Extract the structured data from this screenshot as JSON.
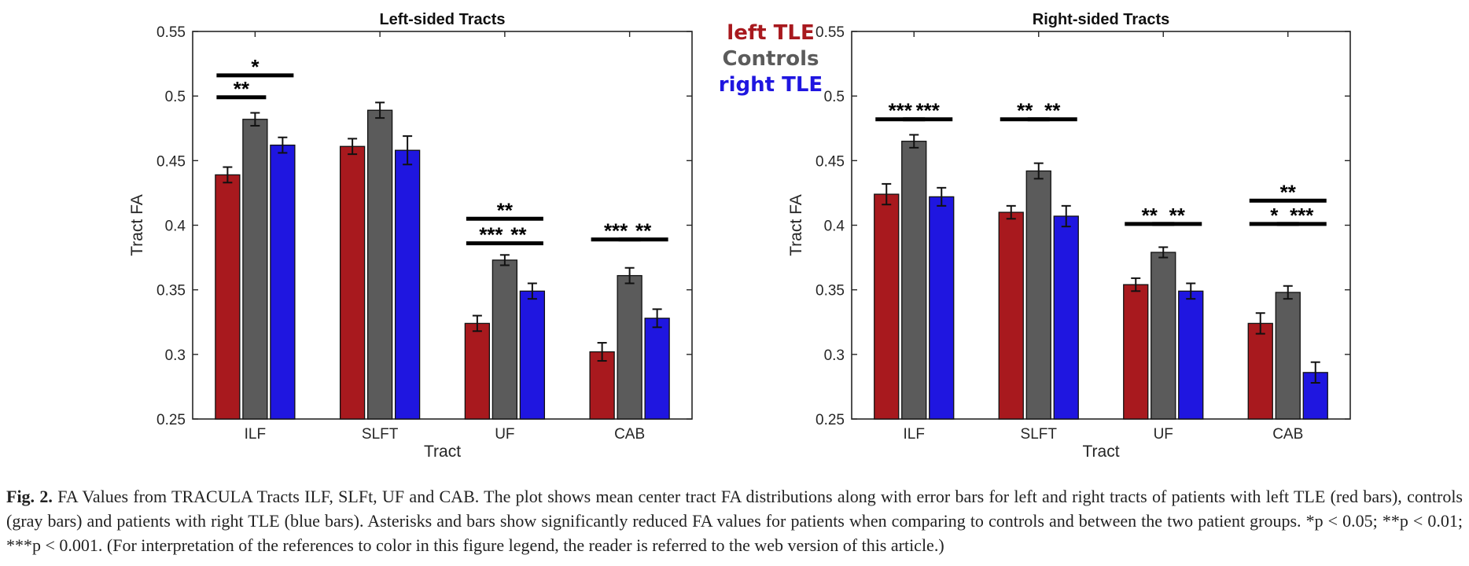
{
  "legend": {
    "entries": [
      {
        "label": "left TLE",
        "color": "#A8191E"
      },
      {
        "label": "Controls",
        "color": "#5B5B5B"
      },
      {
        "label": "right TLE",
        "color": "#1F16E0"
      }
    ]
  },
  "caption": {
    "label": "Fig. 2.",
    "text": "FA Values from TRACULA Tracts ILF, SLFt, UF and CAB. The plot shows mean center tract FA distributions along with error bars for left and right tracts of patients with left TLE (red bars), controls (gray bars) and patients with right TLE (blue bars). Asterisks and bars show significantly reduced FA values for patients when comparing to controls and between the two patient groups. *p < 0.05; **p < 0.01; ***p < 0.001. (For interpretation of the references to color in this figure legend, the reader is referred to the web version of this article.)"
  },
  "chart_data": [
    {
      "type": "bar",
      "title": "Left-sided Tracts",
      "xlabel": "Tract",
      "ylabel": "Tract FA",
      "ylim": [
        0.25,
        0.55
      ],
      "yticks": [
        "0.25",
        "0.3",
        "0.35",
        "0.4",
        "0.45",
        "0.5",
        "0.55"
      ],
      "categories": [
        "ILF",
        "SLFT",
        "UF",
        "CAB"
      ],
      "series": [
        {
          "name": "left TLE",
          "color": "#A8191E",
          "values": [
            0.439,
            0.461,
            0.324,
            0.302
          ],
          "errors": [
            0.006,
            0.006,
            0.006,
            0.007
          ]
        },
        {
          "name": "Controls",
          "color": "#5B5B5B",
          "values": [
            0.482,
            0.489,
            0.373,
            0.361
          ],
          "errors": [
            0.005,
            0.006,
            0.004,
            0.006
          ]
        },
        {
          "name": "right TLE",
          "color": "#1F16E0",
          "values": [
            0.462,
            0.458,
            0.349,
            0.328
          ],
          "errors": [
            0.006,
            0.011,
            0.006,
            0.007
          ]
        }
      ],
      "significance": [
        {
          "category": 0,
          "from": 0,
          "to": 1,
          "label": "**",
          "y": 0.499
        },
        {
          "category": 0,
          "from": 0,
          "to": 2,
          "label": "*",
          "y": 0.516
        },
        {
          "category": 2,
          "from": 0,
          "to": 1,
          "label": "***",
          "y": 0.386
        },
        {
          "category": 2,
          "from": 1,
          "to": 2,
          "label": "**",
          "y": 0.386
        },
        {
          "category": 2,
          "from": 0,
          "to": 2,
          "label": "**",
          "y": 0.405
        },
        {
          "category": 3,
          "from": 0,
          "to": 1,
          "label": "***",
          "y": 0.389
        },
        {
          "category": 3,
          "from": 1,
          "to": 2,
          "label": "**",
          "y": 0.389
        }
      ]
    },
    {
      "type": "bar",
      "title": "Right-sided Tracts",
      "xlabel": "Tract",
      "ylabel": "Tract FA",
      "ylim": [
        0.25,
        0.55
      ],
      "yticks": [
        "0.25",
        "0.3",
        "0.35",
        "0.4",
        "0.45",
        "0.5",
        "0.55"
      ],
      "categories": [
        "ILF",
        "SLFT",
        "UF",
        "CAB"
      ],
      "series": [
        {
          "name": "left TLE",
          "color": "#A8191E",
          "values": [
            0.424,
            0.41,
            0.354,
            0.324
          ],
          "errors": [
            0.008,
            0.005,
            0.005,
            0.008
          ]
        },
        {
          "name": "Controls",
          "color": "#5B5B5B",
          "values": [
            0.465,
            0.442,
            0.379,
            0.348
          ],
          "errors": [
            0.005,
            0.006,
            0.004,
            0.005
          ]
        },
        {
          "name": "right TLE",
          "color": "#1F16E0",
          "values": [
            0.422,
            0.407,
            0.349,
            0.286
          ],
          "errors": [
            0.007,
            0.008,
            0.006,
            0.008
          ]
        }
      ],
      "significance": [
        {
          "category": 0,
          "from": 0,
          "to": 1,
          "label": "***",
          "y": 0.482
        },
        {
          "category": 0,
          "from": 1,
          "to": 2,
          "label": "***",
          "y": 0.482
        },
        {
          "category": 1,
          "from": 0,
          "to": 1,
          "label": "**",
          "y": 0.482
        },
        {
          "category": 1,
          "from": 1,
          "to": 2,
          "label": "**",
          "y": 0.482
        },
        {
          "category": 2,
          "from": 0,
          "to": 1,
          "label": "**",
          "y": 0.401
        },
        {
          "category": 2,
          "from": 1,
          "to": 2,
          "label": "**",
          "y": 0.401
        },
        {
          "category": 3,
          "from": 0,
          "to": 1,
          "label": "*",
          "y": 0.401
        },
        {
          "category": 3,
          "from": 1,
          "to": 2,
          "label": "***",
          "y": 0.401
        },
        {
          "category": 3,
          "from": 0,
          "to": 2,
          "label": "**",
          "y": 0.419
        }
      ]
    }
  ]
}
